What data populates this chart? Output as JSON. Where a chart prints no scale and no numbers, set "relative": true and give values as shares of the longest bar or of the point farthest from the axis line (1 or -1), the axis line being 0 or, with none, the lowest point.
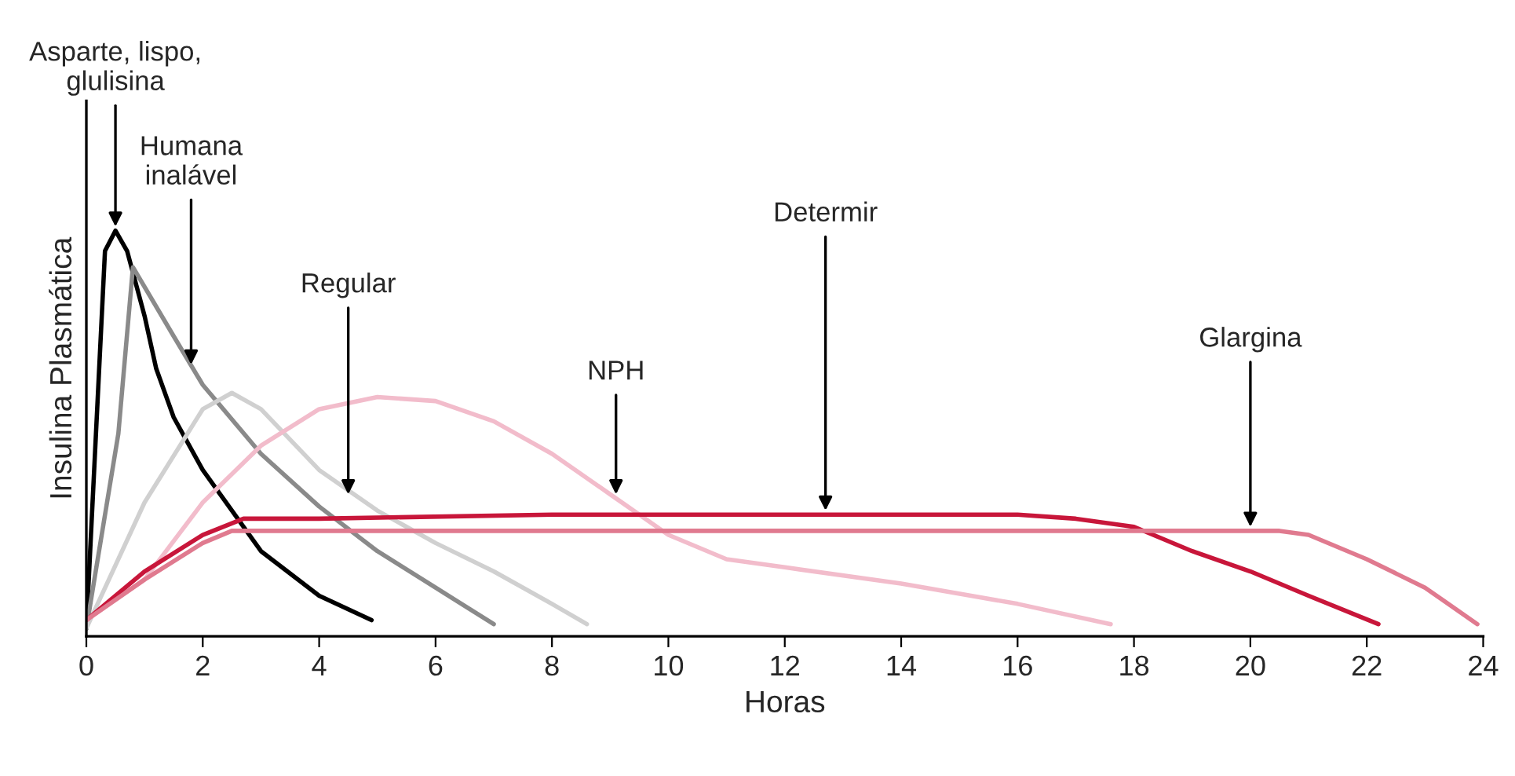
{
  "chart_data": {
    "type": "line",
    "relative": true,
    "xlabel": "Horas",
    "ylabel": "Insulina Plasmática",
    "xlim": [
      0,
      24
    ],
    "xticks": [
      0,
      2,
      4,
      6,
      8,
      10,
      12,
      14,
      16,
      18,
      20,
      22,
      24
    ],
    "grid": false,
    "series": [
      {
        "color": "#000000",
        "x": [
          0,
          0.32,
          0.5,
          0.7,
          1,
          1.2,
          1.5,
          2,
          3,
          4,
          4.9
        ],
        "values": [
          0.02,
          0.95,
          1,
          0.95,
          0.79,
          0.66,
          0.54,
          0.41,
          0.21,
          0.1,
          0.04
        ]
      },
      {
        "color": "#8a8a8a",
        "x": [
          0,
          0.55,
          0.8,
          1.5,
          2,
          3,
          4,
          5,
          6,
          7
        ],
        "values": [
          0.02,
          0.5,
          0.91,
          0.74,
          0.62,
          0.45,
          0.32,
          0.21,
          0.12,
          0.03
        ]
      },
      {
        "color": "#d0d0d0",
        "x": [
          0,
          1,
          2,
          2.5,
          3,
          4,
          5,
          6,
          7,
          8,
          8.6
        ],
        "values": [
          0.02,
          0.33,
          0.56,
          0.6,
          0.56,
          0.41,
          0.31,
          0.23,
          0.16,
          0.08,
          0.03
        ]
      },
      {
        "color": "#f2bccb",
        "x": [
          0,
          1,
          2,
          3,
          4,
          5,
          6,
          7,
          8,
          9,
          10,
          11,
          12,
          14,
          16,
          17.6
        ],
        "values": [
          0.04,
          0.14,
          0.33,
          0.47,
          0.56,
          0.59,
          0.58,
          0.53,
          0.45,
          0.35,
          0.25,
          0.19,
          0.17,
          0.13,
          0.08,
          0.03
        ]
      },
      {
        "color": "#c8163a",
        "x": [
          0,
          1,
          2,
          2.7,
          4,
          8,
          12,
          16,
          17,
          18,
          19,
          20,
          21,
          22.2
        ],
        "values": [
          0.04,
          0.16,
          0.25,
          0.29,
          0.29,
          0.3,
          0.3,
          0.3,
          0.29,
          0.27,
          0.21,
          0.16,
          0.1,
          0.03
        ]
      },
      {
        "color": "#e07a8f",
        "x": [
          0,
          1,
          2,
          2.5,
          4,
          20.5,
          21,
          22,
          23,
          23.9
        ],
        "values": [
          0.04,
          0.14,
          0.23,
          0.26,
          0.26,
          0.26,
          0.25,
          0.19,
          0.12,
          0.03
        ]
      }
    ],
    "annotations": [
      {
        "text": "Asparte, lispo,\nglulisina",
        "x": 0.5,
        "y": 1.01
      },
      {
        "text": "Humana\ninalável",
        "x": 1.8,
        "y": 0.67
      },
      {
        "text": "Regular",
        "x": 4.5,
        "y": 0.35
      },
      {
        "text": "NPH",
        "x": 9.1,
        "y": 0.35
      },
      {
        "text": "Determir",
        "x": 12.7,
        "y": 0.31
      },
      {
        "text": "Glargina",
        "x": 20,
        "y": 0.27
      }
    ]
  }
}
